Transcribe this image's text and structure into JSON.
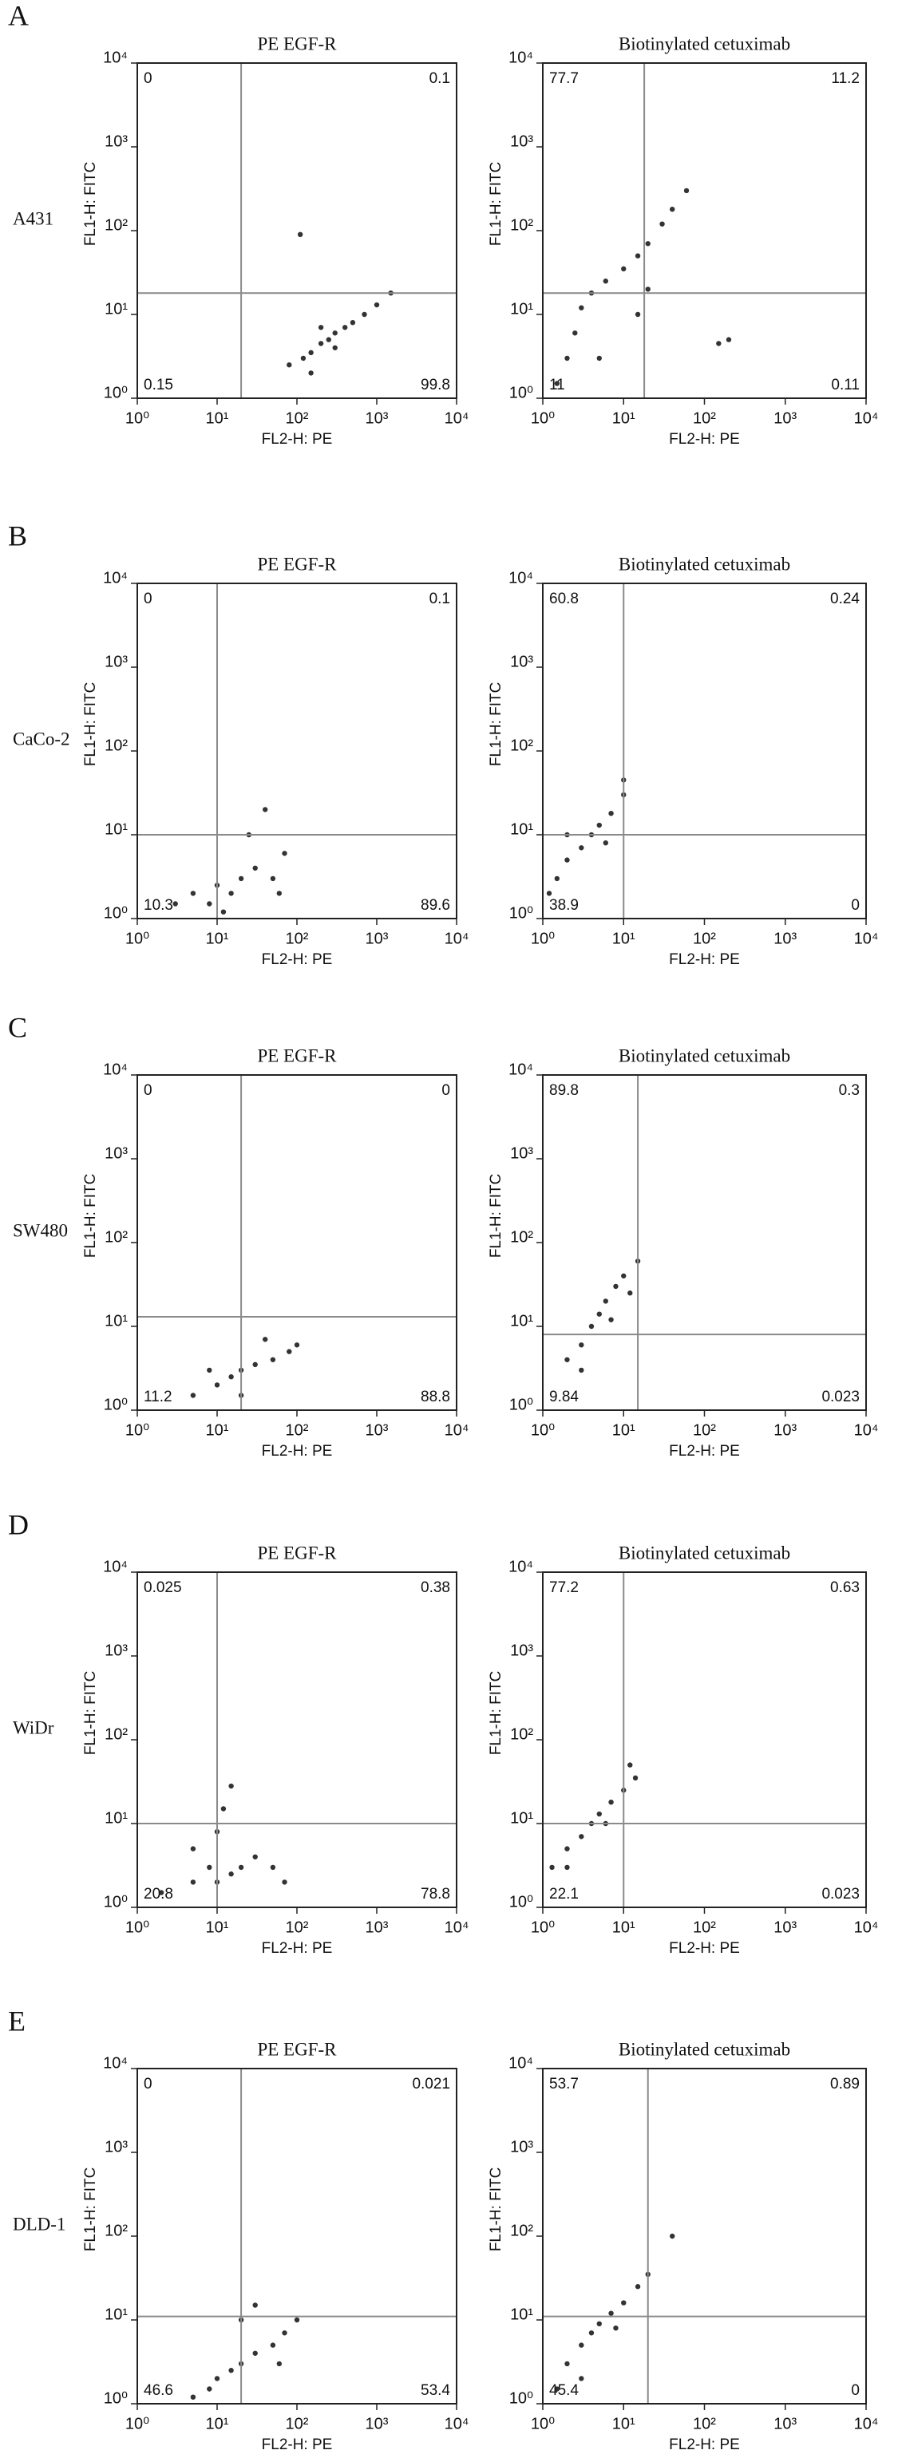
{
  "panels": [
    {
      "letter": "A",
      "cell_line": "A431"
    },
    {
      "letter": "B",
      "cell_line": "CaCo-2"
    },
    {
      "letter": "C",
      "cell_line": "SW480"
    },
    {
      "letter": "D",
      "cell_line": "WiDr"
    },
    {
      "letter": "E",
      "cell_line": "DLD-1"
    }
  ],
  "chart_data": [
    {
      "type": "scatter",
      "title": "PE EGF-R",
      "x_label": "FL2-H: PE",
      "y_label": "FL1-H: FITC",
      "log_scale": true,
      "color": "#333333",
      "xlim": [
        1,
        10000
      ],
      "ylim": [
        1,
        10000
      ],
      "xticks": [
        {
          "value": 1,
          "label": "10⁰"
        },
        {
          "value": 10,
          "label": "10¹"
        },
        {
          "value": 100,
          "label": "10²"
        },
        {
          "value": 1000,
          "label": "10³"
        },
        {
          "value": 10000,
          "label": "10⁴"
        }
      ],
      "yticks": [
        {
          "value": 1,
          "label": "10⁰"
        },
        {
          "value": 10,
          "label": "10¹"
        },
        {
          "value": 100,
          "label": "10²"
        },
        {
          "value": 1000,
          "label": "10³"
        },
        {
          "value": 10000,
          "label": "10⁴"
        }
      ],
      "gate": {
        "x": 20,
        "y": 18
      },
      "quadrants": {
        "upper_left": 0,
        "upper_right": 0.1,
        "lower_left": 0.15,
        "lower_right": 99.8
      },
      "x": [
        80,
        120,
        150,
        200,
        250,
        300,
        400,
        500,
        700,
        1000,
        1500,
        110,
        150,
        300,
        200
      ],
      "y": [
        2.5,
        3,
        3.5,
        4.5,
        5,
        6,
        7,
        8,
        10,
        13,
        18,
        90,
        2,
        4,
        7
      ]
    },
    {
      "type": "scatter",
      "title": "Biotinylated cetuximab",
      "x_label": "FL2-H: PE",
      "y_label": "FL1-H: FITC",
      "log_scale": true,
      "color": "#333333",
      "xlim": [
        1,
        10000
      ],
      "ylim": [
        1,
        10000
      ],
      "xticks": [
        {
          "value": 1,
          "label": "10⁰"
        },
        {
          "value": 10,
          "label": "10¹"
        },
        {
          "value": 100,
          "label": "10²"
        },
        {
          "value": 1000,
          "label": "10³"
        },
        {
          "value": 10000,
          "label": "10⁴"
        }
      ],
      "yticks": [
        {
          "value": 1,
          "label": "10⁰"
        },
        {
          "value": 10,
          "label": "10¹"
        },
        {
          "value": 100,
          "label": "10²"
        },
        {
          "value": 1000,
          "label": "10³"
        },
        {
          "value": 10000,
          "label": "10⁴"
        }
      ],
      "gate": {
        "x": 18,
        "y": 18
      },
      "quadrants": {
        "upper_left": 77.7,
        "upper_right": 11.2,
        "lower_left": 11,
        "lower_right": 0.11
      },
      "x": [
        1.5,
        2,
        2.5,
        3,
        4,
        6,
        10,
        15,
        20,
        30,
        40,
        60,
        20,
        15,
        5,
        200,
        150
      ],
      "y": [
        1.5,
        3,
        6,
        12,
        18,
        25,
        35,
        50,
        70,
        120,
        180,
        300,
        20,
        10,
        3,
        5,
        4.5
      ]
    },
    {
      "type": "scatter",
      "title": "PE EGF-R",
      "x_label": "FL2-H: PE",
      "y_label": "FL1-H: FITC",
      "log_scale": true,
      "color": "#333333",
      "xlim": [
        1,
        10000
      ],
      "ylim": [
        1,
        10000
      ],
      "xticks": [
        {
          "value": 1,
          "label": "10⁰"
        },
        {
          "value": 10,
          "label": "10¹"
        },
        {
          "value": 100,
          "label": "10²"
        },
        {
          "value": 1000,
          "label": "10³"
        },
        {
          "value": 10000,
          "label": "10⁴"
        }
      ],
      "yticks": [
        {
          "value": 1,
          "label": "10⁰"
        },
        {
          "value": 10,
          "label": "10¹"
        },
        {
          "value": 100,
          "label": "10²"
        },
        {
          "value": 1000,
          "label": "10³"
        },
        {
          "value": 10000,
          "label": "10⁴"
        }
      ],
      "gate": {
        "x": 10,
        "y": 10
      },
      "quadrants": {
        "upper_left": 0,
        "upper_right": 0.1,
        "lower_left": 10.3,
        "lower_right": 89.6
      },
      "x": [
        3,
        5,
        8,
        10,
        15,
        20,
        30,
        50,
        70,
        25,
        40,
        12,
        60
      ],
      "y": [
        1.5,
        2,
        1.5,
        2.5,
        2,
        3,
        4,
        3,
        6,
        10,
        20,
        1.2,
        2
      ]
    },
    {
      "type": "scatter",
      "title": "Biotinylated cetuximab",
      "x_label": "FL2-H: PE",
      "y_label": "FL1-H: FITC",
      "log_scale": true,
      "color": "#333333",
      "xlim": [
        1,
        10000
      ],
      "ylim": [
        1,
        10000
      ],
      "xticks": [
        {
          "value": 1,
          "label": "10⁰"
        },
        {
          "value": 10,
          "label": "10¹"
        },
        {
          "value": 100,
          "label": "10²"
        },
        {
          "value": 1000,
          "label": "10³"
        },
        {
          "value": 10000,
          "label": "10⁴"
        }
      ],
      "yticks": [
        {
          "value": 1,
          "label": "10⁰"
        },
        {
          "value": 10,
          "label": "10¹"
        },
        {
          "value": 100,
          "label": "10²"
        },
        {
          "value": 1000,
          "label": "10³"
        },
        {
          "value": 10000,
          "label": "10⁴"
        }
      ],
      "gate": {
        "x": 10,
        "y": 10
      },
      "quadrants": {
        "upper_left": 60.8,
        "upper_right": 0.24,
        "lower_left": 38.9,
        "lower_right": 0
      },
      "x": [
        1.5,
        2,
        3,
        4,
        5,
        7,
        10,
        10,
        2,
        6,
        1.2
      ],
      "y": [
        3,
        5,
        7,
        10,
        13,
        18,
        30,
        45,
        10,
        8,
        2
      ]
    },
    {
      "type": "scatter",
      "title": "PE EGF-R",
      "x_label": "FL2-H: PE",
      "y_label": "FL1-H: FITC",
      "log_scale": true,
      "color": "#333333",
      "xlim": [
        1,
        10000
      ],
      "ylim": [
        1,
        10000
      ],
      "xticks": [
        {
          "value": 1,
          "label": "10⁰"
        },
        {
          "value": 10,
          "label": "10¹"
        },
        {
          "value": 100,
          "label": "10²"
        },
        {
          "value": 1000,
          "label": "10³"
        },
        {
          "value": 10000,
          "label": "10⁴"
        }
      ],
      "yticks": [
        {
          "value": 1,
          "label": "10⁰"
        },
        {
          "value": 10,
          "label": "10¹"
        },
        {
          "value": 100,
          "label": "10²"
        },
        {
          "value": 1000,
          "label": "10³"
        },
        {
          "value": 10000,
          "label": "10⁴"
        }
      ],
      "gate": {
        "x": 20,
        "y": 13
      },
      "quadrants": {
        "upper_left": 0,
        "upper_right": 0,
        "lower_left": 11.2,
        "lower_right": 88.8
      },
      "x": [
        5,
        10,
        15,
        20,
        30,
        50,
        80,
        100,
        8,
        40,
        20
      ],
      "y": [
        1.5,
        2,
        2.5,
        3,
        3.5,
        4,
        5,
        6,
        3,
        7,
        1.5
      ]
    },
    {
      "type": "scatter",
      "title": "Biotinylated cetuximab",
      "x_label": "FL2-H: PE",
      "y_label": "FL1-H: FITC",
      "log_scale": true,
      "color": "#333333",
      "xlim": [
        1,
        10000
      ],
      "ylim": [
        1,
        10000
      ],
      "xticks": [
        {
          "value": 1,
          "label": "10⁰"
        },
        {
          "value": 10,
          "label": "10¹"
        },
        {
          "value": 100,
          "label": "10²"
        },
        {
          "value": 1000,
          "label": "10³"
        },
        {
          "value": 10000,
          "label": "10⁴"
        }
      ],
      "yticks": [
        {
          "value": 1,
          "label": "10⁰"
        },
        {
          "value": 10,
          "label": "10¹"
        },
        {
          "value": 100,
          "label": "10²"
        },
        {
          "value": 1000,
          "label": "10³"
        },
        {
          "value": 10000,
          "label": "10⁴"
        }
      ],
      "gate": {
        "x": 15,
        "y": 8
      },
      "quadrants": {
        "upper_left": 89.8,
        "upper_right": 0.3,
        "lower_left": 9.84,
        "lower_right": 0.023
      },
      "x": [
        2,
        3,
        4,
        5,
        6,
        8,
        10,
        15,
        3,
        7,
        12
      ],
      "y": [
        4,
        6,
        10,
        14,
        20,
        30,
        40,
        60,
        3,
        12,
        25
      ]
    },
    {
      "type": "scatter",
      "title": "PE EGF-R",
      "x_label": "FL2-H: PE",
      "y_label": "FL1-H: FITC",
      "log_scale": true,
      "color": "#333333",
      "xlim": [
        1,
        10000
      ],
      "ylim": [
        1,
        10000
      ],
      "xticks": [
        {
          "value": 1,
          "label": "10⁰"
        },
        {
          "value": 10,
          "label": "10¹"
        },
        {
          "value": 100,
          "label": "10²"
        },
        {
          "value": 1000,
          "label": "10³"
        },
        {
          "value": 10000,
          "label": "10⁴"
        }
      ],
      "yticks": [
        {
          "value": 1,
          "label": "10⁰"
        },
        {
          "value": 10,
          "label": "10¹"
        },
        {
          "value": 100,
          "label": "10²"
        },
        {
          "value": 1000,
          "label": "10³"
        },
        {
          "value": 10000,
          "label": "10⁴"
        }
      ],
      "gate": {
        "x": 10,
        "y": 10
      },
      "quadrants": {
        "upper_left": 0.025,
        "upper_right": 0.38,
        "lower_left": 20.8,
        "lower_right": 78.8
      },
      "x": [
        2,
        5,
        8,
        10,
        15,
        20,
        30,
        50,
        10,
        12,
        15,
        70,
        5
      ],
      "y": [
        1.5,
        2,
        3,
        2,
        2.5,
        3,
        4,
        3,
        8,
        15,
        28,
        2,
        5
      ]
    },
    {
      "type": "scatter",
      "title": "Biotinylated cetuximab",
      "x_label": "FL2-H: PE",
      "y_label": "FL1-H: FITC",
      "log_scale": true,
      "color": "#333333",
      "xlim": [
        1,
        10000
      ],
      "ylim": [
        1,
        10000
      ],
      "xticks": [
        {
          "value": 1,
          "label": "10⁰"
        },
        {
          "value": 10,
          "label": "10¹"
        },
        {
          "value": 100,
          "label": "10²"
        },
        {
          "value": 1000,
          "label": "10³"
        },
        {
          "value": 10000,
          "label": "10⁴"
        }
      ],
      "yticks": [
        {
          "value": 1,
          "label": "10⁰"
        },
        {
          "value": 10,
          "label": "10¹"
        },
        {
          "value": 100,
          "label": "10²"
        },
        {
          "value": 1000,
          "label": "10³"
        },
        {
          "value": 10000,
          "label": "10⁴"
        }
      ],
      "gate": {
        "x": 10,
        "y": 10
      },
      "quadrants": {
        "upper_left": 77.2,
        "upper_right": 0.63,
        "lower_left": 22.1,
        "lower_right": 0.023
      },
      "x": [
        1.3,
        2,
        3,
        4,
        5,
        7,
        10,
        14,
        2,
        6,
        12
      ],
      "y": [
        3,
        5,
        7,
        10,
        13,
        18,
        25,
        35,
        3,
        10,
        50
      ]
    },
    {
      "type": "scatter",
      "title": "PE EGF-R",
      "x_label": "FL2-H: PE",
      "y_label": "FL1-H: FITC",
      "log_scale": true,
      "color": "#333333",
      "xlim": [
        1,
        10000
      ],
      "ylim": [
        1,
        10000
      ],
      "xticks": [
        {
          "value": 1,
          "label": "10⁰"
        },
        {
          "value": 10,
          "label": "10¹"
        },
        {
          "value": 100,
          "label": "10²"
        },
        {
          "value": 1000,
          "label": "10³"
        },
        {
          "value": 10000,
          "label": "10⁴"
        }
      ],
      "yticks": [
        {
          "value": 1,
          "label": "10⁰"
        },
        {
          "value": 10,
          "label": "10¹"
        },
        {
          "value": 100,
          "label": "10²"
        },
        {
          "value": 1000,
          "label": "10³"
        },
        {
          "value": 10000,
          "label": "10⁴"
        }
      ],
      "gate": {
        "x": 20,
        "y": 11
      },
      "quadrants": {
        "upper_left": 0,
        "upper_right": 0.021,
        "lower_left": 46.6,
        "lower_right": 53.4
      },
      "x": [
        5,
        8,
        10,
        15,
        20,
        30,
        50,
        70,
        100,
        20,
        30,
        60
      ],
      "y": [
        1.2,
        1.5,
        2,
        2.5,
        3,
        4,
        5,
        7,
        10,
        10,
        15,
        3
      ]
    },
    {
      "type": "scatter",
      "title": "Biotinylated cetuximab",
      "x_label": "FL2-H: PE",
      "y_label": "FL1-H: FITC",
      "log_scale": true,
      "color": "#333333",
      "xlim": [
        1,
        10000
      ],
      "ylim": [
        1,
        10000
      ],
      "xticks": [
        {
          "value": 1,
          "label": "10⁰"
        },
        {
          "value": 10,
          "label": "10¹"
        },
        {
          "value": 100,
          "label": "10²"
        },
        {
          "value": 1000,
          "label": "10³"
        },
        {
          "value": 10000,
          "label": "10⁴"
        }
      ],
      "yticks": [
        {
          "value": 1,
          "label": "10⁰"
        },
        {
          "value": 10,
          "label": "10¹"
        },
        {
          "value": 100,
          "label": "10²"
        },
        {
          "value": 1000,
          "label": "10³"
        },
        {
          "value": 10000,
          "label": "10⁴"
        }
      ],
      "gate": {
        "x": 20,
        "y": 11
      },
      "quadrants": {
        "upper_left": 53.7,
        "upper_right": 0.89,
        "lower_left": 45.4,
        "lower_right": 0
      },
      "x": [
        1.5,
        2,
        3,
        4,
        5,
        7,
        10,
        15,
        20,
        40,
        3,
        8
      ],
      "y": [
        1.5,
        3,
        5,
        7,
        9,
        12,
        16,
        25,
        35,
        100,
        2,
        8
      ]
    }
  ]
}
